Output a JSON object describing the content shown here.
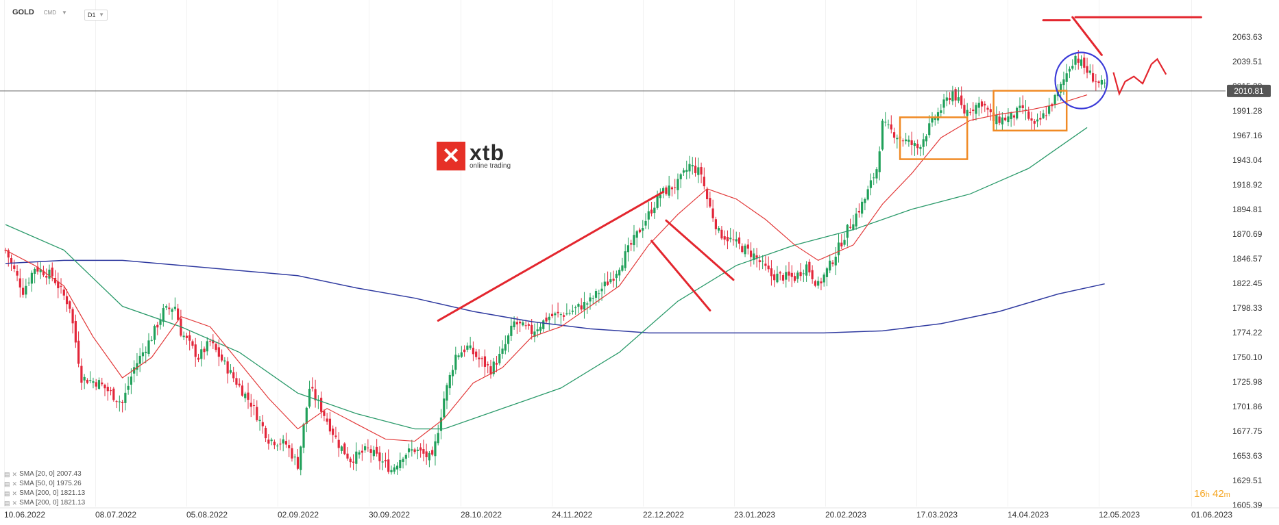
{
  "header": {
    "symbol": "GOLD",
    "market": "CMD",
    "timeframe": "D1"
  },
  "price_tag": "2010.81",
  "logo": {
    "name": "xtb",
    "tagline": "online trading"
  },
  "legend": [
    {
      "label": "SMA [20, 0] 2007.43",
      "color": "#e23838"
    },
    {
      "label": "SMA [50, 0] 1975.26",
      "color": "#2a9a6a"
    },
    {
      "label": "SMA [200, 0] 1821.13",
      "color": "#2f3aa0"
    },
    {
      "label": "SMA [200, 0] 1821.13",
      "color": "#2f3aa0"
    }
  ],
  "timer": {
    "hours": "16",
    "h": "h",
    "minutes": "42",
    "m": "m"
  },
  "colors": {
    "bull": "#20a05a",
    "bear": "#e2263a",
    "sma20": "#e23838",
    "sma50": "#2a9a6a",
    "sma200": "#2f3aa0",
    "drawing_red": "#e3262e",
    "drawing_orange": "#f08a24",
    "drawing_blue": "#3a3ad8"
  },
  "chart_data": {
    "type": "candlestick",
    "title": "GOLD CMD D1",
    "y_ticks": [
      "2063.63",
      "2039.51",
      "2015.39",
      "1991.28",
      "1967.16",
      "1943.04",
      "1918.92",
      "1894.81",
      "1870.69",
      "1846.57",
      "1822.45",
      "1798.33",
      "1774.22",
      "1750.10",
      "1725.98",
      "1701.86",
      "1677.75",
      "1653.63",
      "1629.51",
      "1605.39"
    ],
    "ylim": [
      1605.39,
      2063.63
    ],
    "x_ticks": [
      "10.06.2022",
      "08.07.2022",
      "05.08.2022",
      "02.09.2022",
      "30.09.2022",
      "28.10.2022",
      "24.11.2022",
      "22.12.2022",
      "23.01.2023",
      "20.02.2023",
      "17.03.2023",
      "14.04.2023",
      "12.05.2023",
      "01.06.2023"
    ],
    "close_anchors": [
      [
        0,
        1855
      ],
      [
        6,
        1815
      ],
      [
        10,
        1838
      ],
      [
        16,
        1830
      ],
      [
        22,
        1800
      ],
      [
        26,
        1730
      ],
      [
        32,
        1725
      ],
      [
        40,
        1705
      ],
      [
        44,
        1740
      ],
      [
        50,
        1770
      ],
      [
        54,
        1795
      ],
      [
        58,
        1800
      ],
      [
        60,
        1775
      ],
      [
        66,
        1750
      ],
      [
        70,
        1765
      ],
      [
        78,
        1730
      ],
      [
        84,
        1705
      ],
      [
        90,
        1670
      ],
      [
        96,
        1665
      ],
      [
        100,
        1645
      ],
      [
        104,
        1720
      ],
      [
        108,
        1700
      ],
      [
        114,
        1665
      ],
      [
        118,
        1650
      ],
      [
        124,
        1660
      ],
      [
        132,
        1640
      ],
      [
        136,
        1655
      ],
      [
        140,
        1660
      ],
      [
        146,
        1650
      ],
      [
        150,
        1710
      ],
      [
        154,
        1752
      ],
      [
        158,
        1760
      ],
      [
        162,
        1748
      ],
      [
        166,
        1738
      ],
      [
        170,
        1755
      ],
      [
        174,
        1784
      ],
      [
        180,
        1775
      ],
      [
        186,
        1790
      ],
      [
        192,
        1793
      ],
      [
        200,
        1805
      ],
      [
        208,
        1830
      ],
      [
        214,
        1860
      ],
      [
        218,
        1880
      ],
      [
        224,
        1910
      ],
      [
        230,
        1920
      ],
      [
        234,
        1938
      ],
      [
        238,
        1930
      ],
      [
        240,
        1905
      ],
      [
        244,
        1872
      ],
      [
        248,
        1865
      ],
      [
        256,
        1850
      ],
      [
        262,
        1830
      ],
      [
        270,
        1828
      ],
      [
        274,
        1840
      ],
      [
        278,
        1820
      ],
      [
        282,
        1840
      ],
      [
        288,
        1875
      ],
      [
        294,
        1905
      ],
      [
        298,
        1935
      ],
      [
        300,
        1978
      ],
      [
        306,
        1965
      ],
      [
        312,
        1955
      ],
      [
        318,
        1985
      ],
      [
        324,
        2010
      ],
      [
        328,
        1990
      ],
      [
        334,
        2000
      ],
      [
        338,
        1982
      ],
      [
        344,
        1985
      ],
      [
        348,
        1994
      ],
      [
        352,
        1975
      ],
      [
        356,
        1990
      ],
      [
        360,
        2008
      ],
      [
        364,
        2035
      ],
      [
        366,
        2045
      ],
      [
        370,
        2030
      ],
      [
        374,
        2018
      ],
      [
        376,
        2015
      ]
    ],
    "overlays": {
      "sma20": [
        [
          0,
          1855
        ],
        [
          10,
          1840
        ],
        [
          20,
          1820
        ],
        [
          30,
          1770
        ],
        [
          40,
          1730
        ],
        [
          50,
          1750
        ],
        [
          60,
          1790
        ],
        [
          70,
          1780
        ],
        [
          80,
          1745
        ],
        [
          90,
          1710
        ],
        [
          100,
          1680
        ],
        [
          110,
          1700
        ],
        [
          120,
          1685
        ],
        [
          130,
          1670
        ],
        [
          140,
          1668
        ],
        [
          150,
          1690
        ],
        [
          160,
          1725
        ],
        [
          170,
          1740
        ],
        [
          180,
          1770
        ],
        [
          190,
          1780
        ],
        [
          200,
          1800
        ],
        [
          210,
          1820
        ],
        [
          220,
          1860
        ],
        [
          230,
          1890
        ],
        [
          240,
          1915
        ],
        [
          250,
          1905
        ],
        [
          260,
          1885
        ],
        [
          270,
          1860
        ],
        [
          278,
          1845
        ],
        [
          290,
          1860
        ],
        [
          300,
          1900
        ],
        [
          310,
          1930
        ],
        [
          320,
          1965
        ],
        [
          330,
          1982
        ],
        [
          340,
          1988
        ],
        [
          350,
          1992
        ],
        [
          360,
          1998
        ],
        [
          370,
          2007
        ]
      ],
      "sma50": [
        [
          0,
          1880
        ],
        [
          20,
          1855
        ],
        [
          40,
          1800
        ],
        [
          60,
          1780
        ],
        [
          80,
          1755
        ],
        [
          100,
          1715
        ],
        [
          120,
          1695
        ],
        [
          140,
          1680
        ],
        [
          150,
          1680
        ],
        [
          170,
          1700
        ],
        [
          190,
          1720
        ],
        [
          210,
          1755
        ],
        [
          230,
          1805
        ],
        [
          250,
          1840
        ],
        [
          270,
          1860
        ],
        [
          290,
          1875
        ],
        [
          310,
          1895
        ],
        [
          330,
          1910
        ],
        [
          350,
          1935
        ],
        [
          370,
          1975
        ]
      ],
      "sma200": [
        [
          0,
          1842
        ],
        [
          20,
          1845
        ],
        [
          40,
          1845
        ],
        [
          60,
          1840
        ],
        [
          80,
          1835
        ],
        [
          100,
          1830
        ],
        [
          120,
          1818
        ],
        [
          140,
          1808
        ],
        [
          160,
          1795
        ],
        [
          180,
          1785
        ],
        [
          200,
          1778
        ],
        [
          220,
          1774
        ],
        [
          240,
          1774
        ],
        [
          260,
          1774
        ],
        [
          280,
          1774
        ],
        [
          300,
          1776
        ],
        [
          320,
          1783
        ],
        [
          340,
          1795
        ],
        [
          360,
          1812
        ],
        [
          376,
          1822
        ]
      ]
    },
    "current_price": 2010.81
  }
}
